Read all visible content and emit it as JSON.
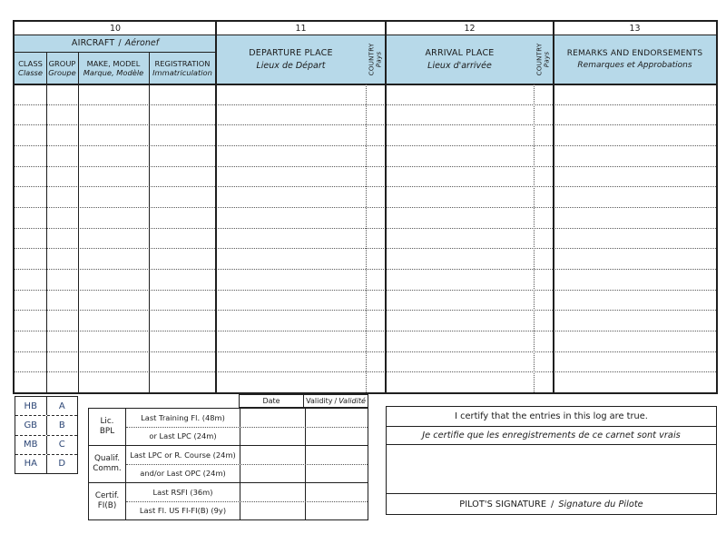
{
  "colors": {
    "header_blue": "#b7d9e9",
    "border": "#1f1f1f",
    "class_group_text_blue": "#2b4575"
  },
  "columns": {
    "col10": {
      "number": "10",
      "title_en": "AIRCRAFT",
      "separator": "/",
      "title_fr": "Aéronef",
      "subcolumns": [
        {
          "en": "CLASS",
          "fr": "Classe"
        },
        {
          "en": "GROUP",
          "fr": "Groupe"
        },
        {
          "en": "MAKE, MODEL",
          "fr": "Marque, Modèle"
        },
        {
          "en": "REGISTRATION",
          "fr": "Immatriculation"
        }
      ]
    },
    "col11": {
      "number": "11",
      "title_en": "DEPARTURE PLACE",
      "title_fr": "Lieux de Départ",
      "country_en": "COUNTRY",
      "country_fr": "Pays"
    },
    "col12": {
      "number": "12",
      "title_en": "ARRIVAL PLACE",
      "title_fr": "Lieux d'arrivée",
      "country_en": "COUNTRY",
      "country_fr": "Pays"
    },
    "col13": {
      "number": "13",
      "title_en": "REMARKS AND ENDORSEMENTS",
      "title_fr": "Remarques et Approbations"
    }
  },
  "body": {
    "row_count": 15
  },
  "class_group_table": {
    "rows": [
      {
        "class": "HB",
        "group": "A"
      },
      {
        "class": "GB",
        "group": "B"
      },
      {
        "class": "MB",
        "group": "C"
      },
      {
        "class": "HA",
        "group": "D"
      }
    ]
  },
  "validity_table": {
    "date_header": "Date",
    "validity_header_en": "Validity",
    "separator": "/",
    "validity_header_fr": "Validité",
    "groups": [
      {
        "label_line1": "Lic.",
        "label_line2": "BPL",
        "rows": [
          "Last Training Fl. (48m)",
          "or Last LPC (24m)"
        ]
      },
      {
        "label_line1": "Qualif.",
        "label_line2": "Comm.",
        "rows": [
          "Last LPC or R. Course (24m)",
          "and/or Last OPC (24m)"
        ]
      },
      {
        "label_line1": "Certif.",
        "label_line2": "FI(B)",
        "rows": [
          "Last RSFI (36m)",
          "Last Fl. US FI-FI(B) (9y)"
        ]
      }
    ]
  },
  "certification": {
    "statement_en": "I certify that the entries in this log are true.",
    "statement_fr": "Je certifie que les enregistrements de ce carnet sont vrais",
    "signature_en": "PILOT'S SIGNATURE",
    "separator": "/",
    "signature_fr": "Signature du Pilote"
  }
}
